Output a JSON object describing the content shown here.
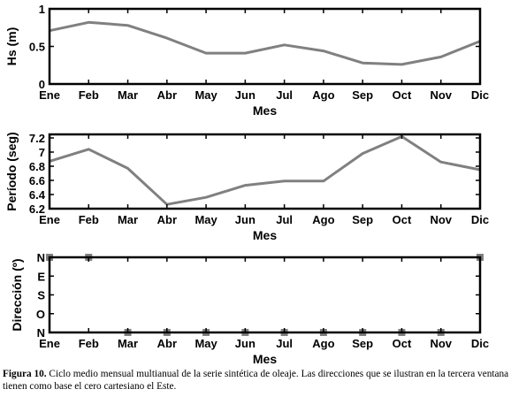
{
  "chart_data": [
    {
      "type": "line",
      "ylabel": "Hs (m)",
      "xlabel": "Mes",
      "categories": [
        "Ene",
        "Feb",
        "Mar",
        "Abr",
        "May",
        "Jun",
        "Jul",
        "Ago",
        "Sep",
        "Oct",
        "Nov",
        "Dic"
      ],
      "ylim": [
        0,
        1
      ],
      "yticks": [
        "0",
        "0.5",
        "1"
      ],
      "ytick_values": [
        0,
        0.5,
        1
      ],
      "series_color": "#808080",
      "series": [
        {
          "values": [
            0.71,
            0.82,
            0.78,
            0.61,
            0.41,
            0.41,
            0.52,
            0.44,
            0.28,
            0.26,
            0.36,
            0.57
          ]
        }
      ],
      "grid": false
    },
    {
      "type": "line",
      "ylabel": "Período (seg)",
      "xlabel": "Mes",
      "categories": [
        "Ene",
        "Feb",
        "Mar",
        "Abr",
        "May",
        "Jun",
        "Jul",
        "Ago",
        "Sep",
        "Oct",
        "Nov",
        "Dic"
      ],
      "ylim": [
        6.2,
        7.25
      ],
      "yticks": [
        "6.2",
        "6.4",
        "6.6",
        "6.8",
        "7",
        "7.2"
      ],
      "ytick_values": [
        6.2,
        6.4,
        6.6,
        6.8,
        7.0,
        7.2
      ],
      "series_color": "#808080",
      "series": [
        {
          "values": [
            6.87,
            7.04,
            6.77,
            6.26,
            6.36,
            6.53,
            6.59,
            6.59,
            6.98,
            7.22,
            6.86,
            6.75
          ]
        }
      ],
      "grid": false
    },
    {
      "type": "scatter",
      "ylabel": "Dirección (º)",
      "xlabel": "Mes",
      "categories": [
        "Ene",
        "Feb",
        "Mar",
        "Abr",
        "May",
        "Jun",
        "Jul",
        "Ago",
        "Sep",
        "Oct",
        "Nov",
        "Dic"
      ],
      "ylim": [
        0,
        4
      ],
      "yticks": [
        "N",
        "O",
        "S",
        "E",
        "N"
      ],
      "ytick_values": [
        0,
        1,
        2,
        3,
        4
      ],
      "series_color": "#808080",
      "series": [
        {
          "values": [
            "N",
            "N",
            "N",
            "N",
            "N",
            "N",
            "N",
            "N",
            "N",
            "N",
            "N",
            "N"
          ],
          "positions": [
            4,
            4,
            0,
            0,
            0,
            0,
            0,
            0,
            0,
            0,
            0,
            4
          ]
        }
      ],
      "grid": false
    }
  ],
  "caption": {
    "label": "Figura 10.",
    "text": " Ciclo medio mensual multianual de la serie sintética de oleaje. Las direcciones que se ilustran en la tercera ventana tienen como base el cero cartesiano el Este."
  }
}
